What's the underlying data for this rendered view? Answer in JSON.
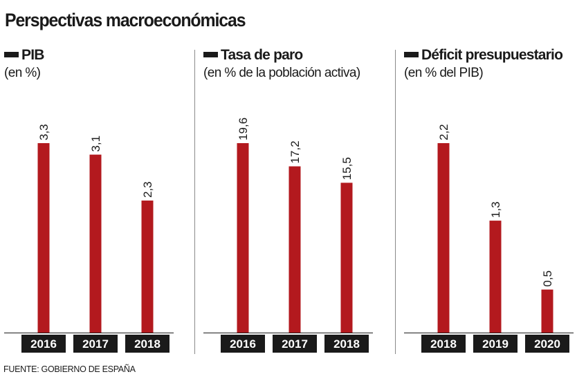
{
  "title": "Perspectivas macroeconómicas",
  "source": "FUENTE:  GOBIERNO DE ESPAÑA",
  "colors": {
    "bar": "#b3191e",
    "label_bg": "#1a1a1a",
    "label_text": "#ffffff"
  },
  "chart_data": [
    {
      "type": "bar",
      "title": "PIB",
      "subtitle": "(en %)",
      "categories": [
        "2016",
        "2017",
        "2018"
      ],
      "values": [
        3.3,
        3.1,
        2.3
      ],
      "value_labels": [
        "3,3",
        "3,1",
        "2,3"
      ],
      "ylim": [
        0,
        3.3
      ]
    },
    {
      "type": "bar",
      "title": "Tasa de paro",
      "subtitle": "(en % de la población activa)",
      "categories": [
        "2016",
        "2017",
        "2018"
      ],
      "values": [
        19.6,
        17.2,
        15.5
      ],
      "value_labels": [
        "19,6",
        "17,2",
        "15,5"
      ],
      "ylim": [
        0,
        19.6
      ]
    },
    {
      "type": "bar",
      "title": "Déficit presupuestario",
      "subtitle": "(en % del PIB)",
      "categories": [
        "2018",
        "2019",
        "2020"
      ],
      "values": [
        2.2,
        1.3,
        0.5
      ],
      "value_labels": [
        "2,2",
        "1,3",
        "0,5"
      ],
      "ylim": [
        0,
        2.2
      ]
    }
  ]
}
